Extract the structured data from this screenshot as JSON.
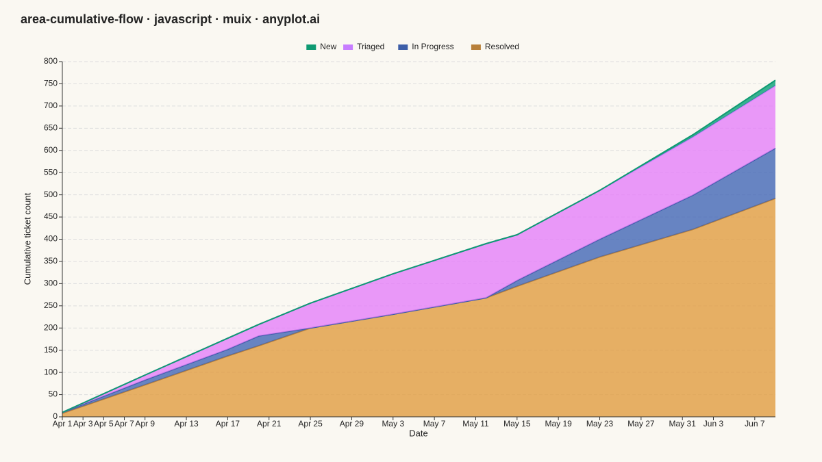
{
  "chart_data": {
    "type": "area",
    "stacked": true,
    "title": "area-cumulative-flow · javascript · muix · anyplot.ai",
    "xlabel": "Date",
    "ylabel": "Cumulative ticket count",
    "x": [
      "Apr 1",
      "Apr 9",
      "Apr 17",
      "Apr 20",
      "Apr 25",
      "May 3",
      "May 12",
      "May 15",
      "May 23",
      "Jun 1",
      "Jun 9"
    ],
    "series": [
      {
        "name": "Resolved",
        "color": "#e09a3c",
        "legend_color": "#b8803a",
        "values": [
          8,
          72,
          137,
          160,
          200,
          231,
          268,
          294,
          360,
          422,
          492
        ]
      },
      {
        "name": "In Progress",
        "color": "#3d63b5",
        "legend_color": "#3d5ea8",
        "values": [
          2,
          11,
          15,
          22,
          0,
          0,
          0,
          13,
          40,
          77,
          113
        ]
      },
      {
        "name": "Triaged",
        "color": "#e47cfa",
        "legend_color": "#c77dff",
        "values": [
          0,
          11,
          25,
          26,
          56,
          91,
          122,
          103,
          110,
          131,
          141
        ]
      },
      {
        "name": "New",
        "color": "#009e73",
        "legend_color": "#0e9a72",
        "values": [
          0,
          0,
          0,
          0,
          0,
          0,
          0,
          0,
          0,
          5,
          12
        ]
      }
    ],
    "legend": "top",
    "xlim": [
      "Apr 1",
      "Jun 9"
    ],
    "xticks": [
      "Apr 1",
      "Apr 3",
      "Apr 5",
      "Apr 7",
      "Apr 9",
      "Apr 13",
      "Apr 17",
      "Apr 21",
      "Apr 25",
      "Apr 29",
      "May 3",
      "May 7",
      "May 11",
      "May 15",
      "May 19",
      "May 23",
      "May 27",
      "May 31",
      "Jun 3",
      "Jun 7"
    ],
    "ylim": [
      0,
      800
    ],
    "yticks": [
      0,
      50,
      100,
      150,
      200,
      250,
      300,
      350,
      400,
      450,
      500,
      550,
      600,
      650,
      700,
      750,
      800
    ],
    "grid": true
  }
}
